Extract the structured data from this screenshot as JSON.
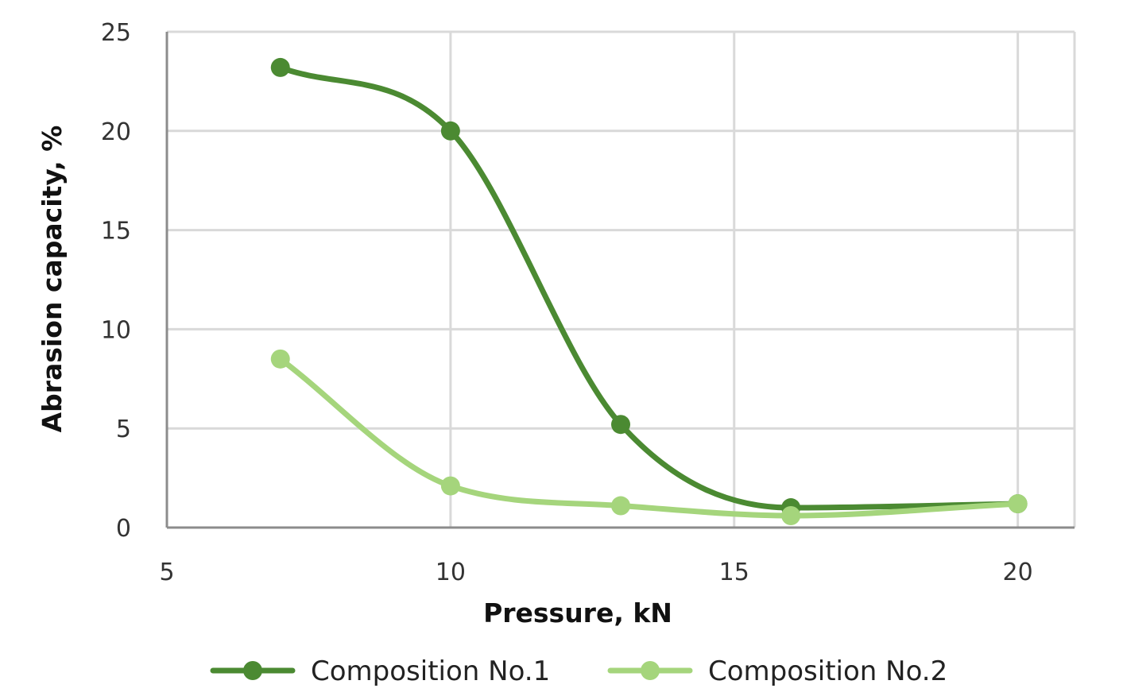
{
  "chart_data": {
    "type": "line",
    "title": "",
    "xlabel": "Pressure, kN",
    "ylabel": "Abrasion capacity, %",
    "xlim": [
      5,
      21
    ],
    "ylim": [
      0,
      25
    ],
    "xticks": [
      5,
      10,
      15,
      20
    ],
    "yticks": [
      0,
      5,
      10,
      15,
      20,
      25
    ],
    "grid": true,
    "legend": "bottom",
    "smooth": true,
    "series": [
      {
        "name": "Composition No.1",
        "color": "#4b8a32",
        "x": [
          7,
          10,
          13,
          16,
          20
        ],
        "y": [
          23.2,
          20.0,
          5.2,
          1.0,
          1.2
        ]
      },
      {
        "name": "Composition No.2",
        "color": "#a5d57c",
        "x": [
          7,
          10,
          13,
          16,
          20
        ],
        "y": [
          8.5,
          2.1,
          1.1,
          0.6,
          1.2
        ]
      }
    ]
  }
}
